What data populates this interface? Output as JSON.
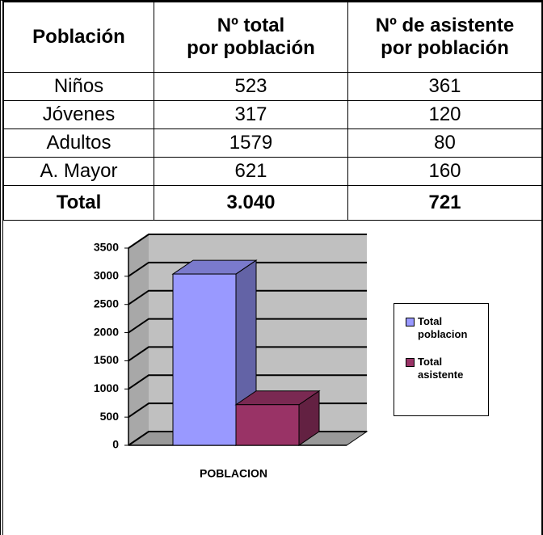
{
  "table": {
    "header": [
      [
        "Población"
      ],
      [
        "Nº total",
        "por población"
      ],
      [
        "Nº de  asistente",
        "por población"
      ]
    ],
    "rows": [
      [
        "Niños",
        "523",
        "361"
      ],
      [
        "Jóvenes",
        "317",
        "120"
      ],
      [
        "Adultos",
        "1579",
        "80"
      ],
      [
        "A. Mayor",
        "621",
        "160"
      ],
      [
        "Total",
        "3.040",
        "721"
      ]
    ]
  },
  "chart_data": {
    "type": "bar",
    "categories": [
      "POBLACION"
    ],
    "series": [
      {
        "name": "Total poblacion",
        "color": "#9999ff",
        "values": [
          3040
        ]
      },
      {
        "name": "Total asistente",
        "color": "#993366",
        "values": [
          721
        ]
      }
    ],
    "ylim": [
      0,
      3500
    ],
    "yticks": [
      0,
      500,
      1000,
      1500,
      2000,
      2500,
      3000,
      3500
    ],
    "grid": true
  }
}
